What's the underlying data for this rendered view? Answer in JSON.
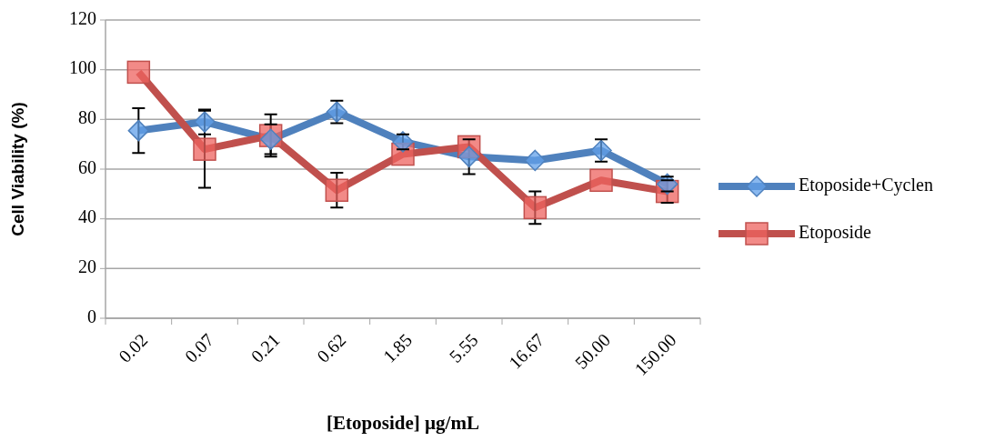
{
  "chart_data": {
    "type": "line",
    "xlabel": "[Etoposide] µg/mL",
    "ylabel": "Cell Viability (%)",
    "categories": [
      "0.02",
      "0.07",
      "0.21",
      "0.62",
      "1.85",
      "5.55",
      "16.67",
      "50.00",
      "150.00"
    ],
    "ylim": [
      0,
      120
    ],
    "yticks": [
      0,
      20,
      40,
      60,
      80,
      100,
      120
    ],
    "grid": "y",
    "legend": "right",
    "series": [
      {
        "name": "Etoposide+Cyclen",
        "color": "#4f81bd",
        "marker": "diamond",
        "values": [
          75.5,
          79,
          72,
          83,
          71,
          65,
          63.5,
          67.5,
          54
        ],
        "errors": [
          9,
          5,
          6,
          4.5,
          3,
          7,
          null,
          4.5,
          3
        ]
      },
      {
        "name": "Etoposide",
        "color": "#c0504d",
        "marker": "square",
        "values": [
          99,
          68,
          73.5,
          51.5,
          66,
          69,
          44.5,
          55.5,
          51
        ],
        "errors": [
          null,
          15.5,
          8.5,
          7,
          null,
          null,
          6.5,
          null,
          4.5
        ]
      }
    ]
  }
}
